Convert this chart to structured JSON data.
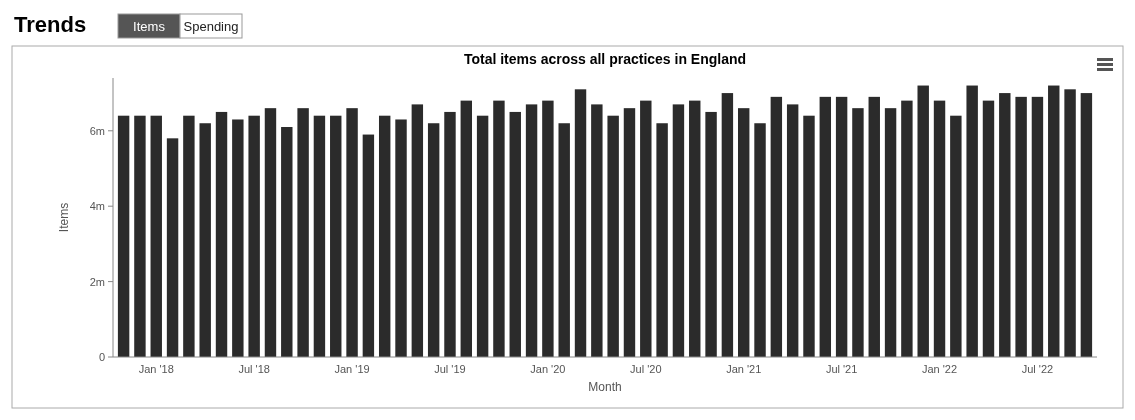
{
  "chart_data": {
    "type": "bar",
    "title": "Total items across all practices in England",
    "xlabel": "Month",
    "ylabel": "Items",
    "annotations": [
      "Trends",
      "Items",
      "Spending"
    ],
    "categories": [
      null,
      null,
      "Jan '18",
      null,
      null,
      null,
      null,
      null,
      "Jul '18",
      null,
      null,
      null,
      null,
      null,
      "Jan '19",
      null,
      null,
      null,
      null,
      null,
      "Jul '19",
      null,
      null,
      null,
      null,
      null,
      "Jan '20",
      null,
      null,
      null,
      null,
      null,
      "Jul '20",
      null,
      null,
      null,
      null,
      null,
      "Jan '21",
      null,
      null,
      null,
      null,
      null,
      "Jul '21",
      null,
      null,
      null,
      null,
      null,
      "Jan '22",
      null,
      null,
      null,
      null,
      null,
      "Jul '22",
      null,
      null,
      null
    ],
    "values": [
      6.4,
      6.4,
      6.4,
      5.8,
      6.4,
      6.2,
      6.5,
      6.3,
      6.4,
      6.6,
      6.1,
      6.6,
      6.4,
      6.4,
      6.6,
      5.9,
      6.4,
      6.3,
      6.7,
      6.2,
      6.5,
      6.8,
      6.4,
      6.8,
      6.5,
      6.7,
      6.8,
      6.2,
      7.1,
      6.7,
      6.4,
      6.6,
      6.8,
      6.2,
      6.7,
      6.8,
      6.5,
      7.0,
      6.6,
      6.2,
      6.9,
      6.7,
      6.4,
      6.9,
      6.9,
      6.6,
      6.9,
      6.6,
      6.8,
      7.2,
      6.8,
      6.4,
      7.2,
      6.8,
      7.0,
      6.9,
      6.9,
      7.2,
      7.1,
      7.0
    ],
    "color": "#2b2b2b",
    "ylim": [
      0,
      7.4
    ],
    "yticks": [
      0,
      {
        "value": 2,
        "label": "2m"
      },
      {
        "value": 4,
        "label": "4m"
      },
      {
        "value": 6,
        "label": "6m"
      }
    ]
  }
}
